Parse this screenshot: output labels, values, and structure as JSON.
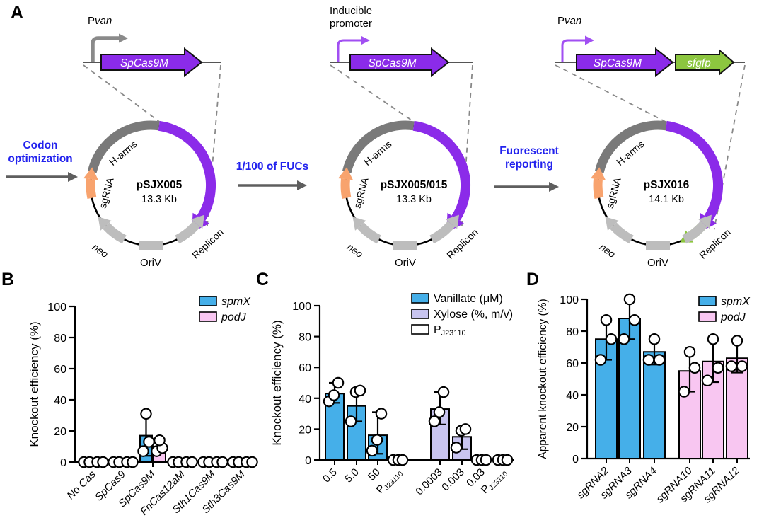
{
  "figure": {
    "panel_a": {
      "label": "A",
      "step_color": "#2222EE",
      "steps": [
        {
          "lines": [
            "Codon",
            "optimization"
          ]
        },
        {
          "lines": [
            "1/100 of FUCs"
          ]
        },
        {
          "lines": [
            "Fuorescent",
            "reporting"
          ]
        }
      ],
      "plasmids": [
        {
          "name": "pSJX005",
          "size": "13.3 Kb",
          "promoter": {
            "prefix": "P",
            "italic": "van",
            "color": "#8A8A8A",
            "thick": true
          },
          "genes": [
            {
              "label": "SpCas9M",
              "color": "#8B2BE9"
            }
          ],
          "features": {
            "sgrna": "sgRNA",
            "harms": "H-arms",
            "neo": "neo",
            "oriv": "OriV",
            "replicon": "Replicon"
          },
          "has_gfp_marker": false
        },
        {
          "name": "pSJX005/015",
          "size": "13.3 Kb",
          "promoter": {
            "lines": [
              "Inducible",
              "promoter"
            ],
            "color": "#A14FF2",
            "thick": false
          },
          "genes": [
            {
              "label": "SpCas9M",
              "color": "#8B2BE9"
            }
          ],
          "features": {
            "sgrna": "sgRNA",
            "harms": "H-arms",
            "neo": "neo",
            "oriv": "OriV",
            "replicon": "Replicon"
          },
          "has_gfp_marker": false
        },
        {
          "name": "pSJX016",
          "size": "14.1 Kb",
          "promoter": {
            "prefix": "P",
            "italic": "van",
            "color": "#A14FF2",
            "thick": false
          },
          "genes": [
            {
              "label": "SpCas9M",
              "color": "#8B2BE9"
            },
            {
              "label": "sfgfp",
              "color": "#8CC63F"
            }
          ],
          "features": {
            "sgrna": "sgRNA",
            "harms": "H-arms",
            "neo": "neo",
            "oriv": "OriV",
            "replicon": "Replicon"
          },
          "has_gfp_marker": true
        }
      ],
      "colors": {
        "cas_arc": "#8B2BE9",
        "gfp": "#8CC63F",
        "sgrna": "#F8A36E",
        "harms_arc": "#7A7A7A",
        "backbone_feature": "#BDBDBD",
        "arrow_gray": "#5E5E5E"
      }
    },
    "panel_b_label": "B",
    "panel_c_label": "C",
    "panel_d_label": "D"
  },
  "chart_data": [
    {
      "id": "B",
      "type": "bar",
      "ylabel": "Knockout efficiency (%)",
      "ylim": [
        0,
        100
      ],
      "yticks": [
        0,
        20,
        40,
        60,
        80,
        100
      ],
      "grid": false,
      "legend_position": "top-right",
      "categories": [
        "No Cas",
        "SpCas9",
        "SpCas9M",
        "FnCas12aM",
        "Sth1Cas9M",
        "Sth3Cas9M"
      ],
      "xlabel_italic": true,
      "legend": [
        {
          "label": "spmX",
          "color": "#45AFE9",
          "italic": true
        },
        {
          "label": "podJ",
          "color": "#F8C6F1",
          "italic": true
        }
      ],
      "series": [
        {
          "name": "spmX",
          "color": "#45AFE9",
          "values": [
            0,
            0,
            17,
            0,
            0,
            0
          ],
          "errors": [
            null,
            null,
            [
              4,
              31
            ],
            null,
            null,
            null
          ],
          "points": [
            [
              0,
              0
            ],
            [
              0,
              0
            ],
            [
              7,
              13,
              31
            ],
            [
              0,
              0
            ],
            [
              0,
              0
            ],
            [
              0,
              0
            ]
          ]
        },
        {
          "name": "podJ",
          "color": "#F8C6F1",
          "values": [
            0,
            0,
            10,
            0,
            0,
            0
          ],
          "errors": [
            null,
            null,
            [
              6,
              15
            ],
            null,
            null,
            null
          ],
          "points": [
            [
              0,
              0
            ],
            [
              0,
              0
            ],
            [
              7,
              9,
              14
            ],
            [
              0,
              0
            ],
            [
              0,
              0
            ],
            [
              0,
              0
            ]
          ]
        }
      ]
    },
    {
      "id": "C",
      "type": "bar",
      "ylabel": "Knockout efficiency (%)",
      "ylim": [
        0,
        100
      ],
      "yticks": [
        0,
        20,
        40,
        60,
        80,
        100
      ],
      "grid": false,
      "legend_position": "top-right",
      "categories": [
        "0.5",
        "5.0",
        "50",
        "P|J23110",
        "0.0003",
        "0.003",
        "0.03",
        "P|J23110"
      ],
      "xlabel_italic": false,
      "legend": [
        {
          "label": "Vanillate (μM)",
          "color": "#45AFE9",
          "italic": false
        },
        {
          "label": "Xylose (%, m/v)",
          "color": "#C8C4F0",
          "italic": false
        },
        {
          "label": "P|J23110",
          "color": "#FFFFFF",
          "italic": false
        }
      ],
      "bars": {
        "values": [
          43,
          35,
          16,
          0,
          33,
          15,
          0,
          0
        ],
        "colors": [
          "#45AFE9",
          "#45AFE9",
          "#45AFE9",
          "#FFFFFF",
          "#C8C4F0",
          "#C8C4F0",
          "#C8C4F0",
          "#FFFFFF"
        ],
        "errors": [
          [
            37,
            50
          ],
          [
            25,
            45
          ],
          [
            4,
            31
          ],
          null,
          [
            23,
            44
          ],
          [
            7,
            21
          ],
          null,
          null
        ],
        "points": [
          [
            38,
            42,
            50
          ],
          [
            25,
            44,
            45
          ],
          [
            6,
            13,
            30
          ],
          [
            0,
            0,
            0
          ],
          [
            25,
            31,
            44
          ],
          [
            8,
            19,
            20
          ],
          [
            0,
            0,
            0
          ],
          [
            0,
            0,
            0
          ]
        ]
      }
    },
    {
      "id": "D",
      "type": "bar",
      "ylabel": "Apparent knockout efficiency (%)",
      "ylim": [
        0,
        100
      ],
      "yticks": [
        0,
        20,
        40,
        60,
        80,
        100
      ],
      "grid": false,
      "legend_position": "top-right",
      "categories": [
        "sgRNA2",
        "sgRNA3",
        "sgRNA4",
        "sgRNA10",
        "sgRNA11",
        "sgRNA12"
      ],
      "xlabel_italic": true,
      "legend": [
        {
          "label": "spmX",
          "color": "#45AFE9",
          "italic": true
        },
        {
          "label": "podJ",
          "color": "#F8C6F1",
          "italic": true
        }
      ],
      "bars": {
        "values": [
          75,
          88,
          67,
          55,
          61,
          63
        ],
        "colors": [
          "#45AFE9",
          "#45AFE9",
          "#45AFE9",
          "#F8C6F1",
          "#F8C6F1",
          "#F8C6F1"
        ],
        "errors": [
          [
            62,
            87
          ],
          [
            75,
            100
          ],
          [
            59,
            75
          ],
          [
            42,
            67
          ],
          [
            48,
            75
          ],
          [
            54,
            74
          ]
        ],
        "points": [
          [
            62,
            75,
            87
          ],
          [
            75,
            87,
            100
          ],
          [
            62,
            62,
            75
          ],
          [
            42,
            57,
            67
          ],
          [
            49,
            57,
            75
          ],
          [
            58,
            58,
            74
          ]
        ]
      }
    }
  ]
}
